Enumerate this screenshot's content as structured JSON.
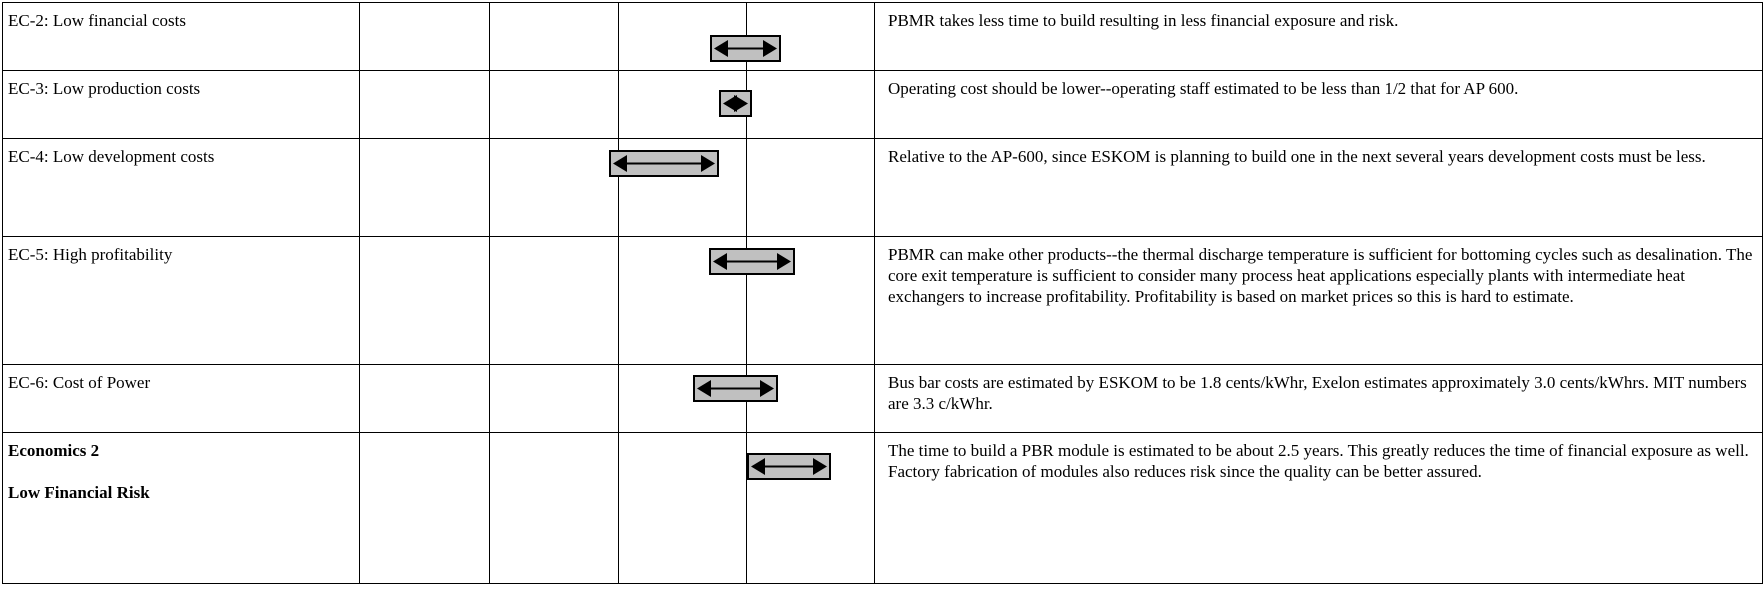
{
  "rows": [
    {
      "label": [
        "EC-2: Low financial costs"
      ],
      "comment": "PBMR takes less time to build resulting in less financial exposure and risk."
    },
    {
      "label": [
        "EC-3: Low production costs"
      ],
      "comment": "Operating cost should be lower--operating staff estimated to be less than 1/2 that for AP 600."
    },
    {
      "label": [
        "EC-4: Low development costs"
      ],
      "comment": "Relative to the AP-600, since ESKOM is planning to build one in the next several years development costs must be less."
    },
    {
      "label": [
        "EC-5: High profitability"
      ],
      "comment": "PBMR can make other products--the thermal discharge temperature is sufficient for bottoming cycles such as desalination. The core exit temperature is sufficient to consider many process heat applications especially plants with intermediate heat exchangers to increase profitability. Profitability is based on market prices so this is hard to estimate."
    },
    {
      "label": [
        "EC-6:  Cost of Power"
      ],
      "comment": "Bus bar costs are estimated by ESKOM to be 1.8 cents/kWhr, Exelon estimates approximately 3.0 cents/kWhrs. MIT numbers are 3.3 c/kWhr."
    },
    {
      "label": [
        "Economics 2",
        "Low Financial Risk"
      ],
      "comment": "The time to build a PBR module is estimated to be about 2.5 years. This greatly reduces the time of financial exposure as well. Factory fabrication of modules also reduces risk since the quality can be better assured."
    }
  ]
}
